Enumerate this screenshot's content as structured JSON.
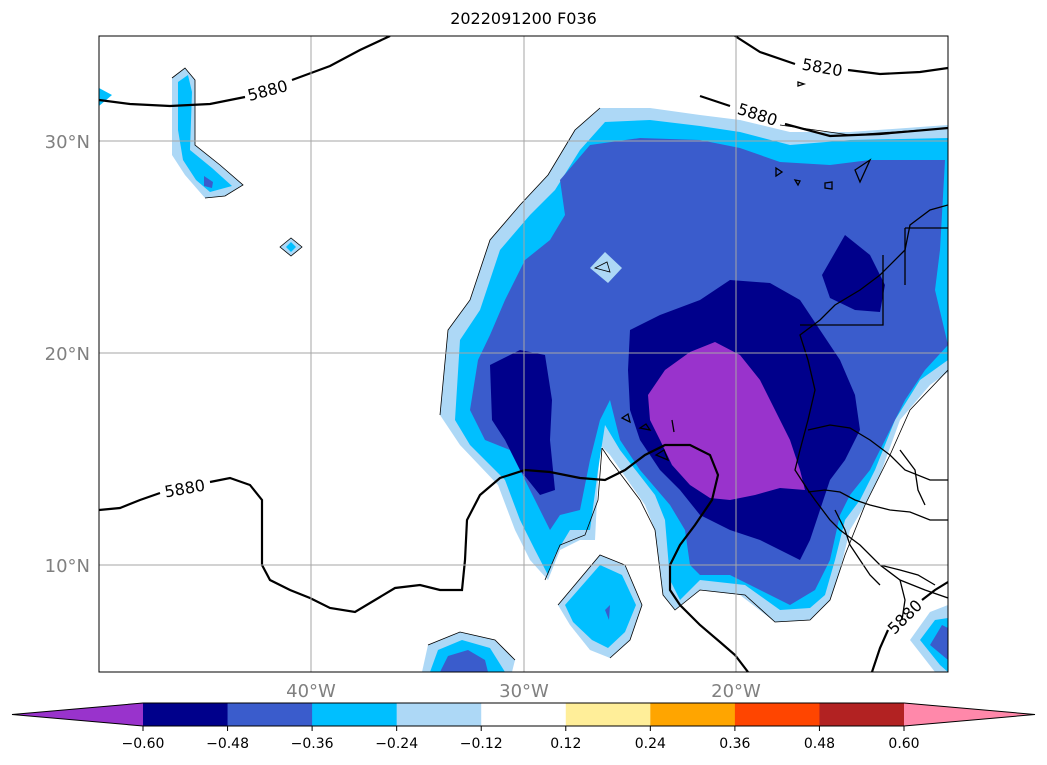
{
  "title": "2022091200 F036",
  "map": {
    "lat_ticks": [
      "30°N",
      "20°N",
      "10°N"
    ],
    "lon_ticks": [
      "40°W",
      "30°W",
      "20°W"
    ],
    "contour_labels": [
      "5880",
      "5880",
      "5820",
      "5880",
      "5880"
    ],
    "gridlines": true
  },
  "colorbar": {
    "ticks": [
      "−0.60",
      "−0.48",
      "−0.36",
      "−0.24",
      "−0.12",
      "0.12",
      "0.24",
      "0.36",
      "0.48",
      "0.60"
    ],
    "colors": [
      "#9933cc",
      "#00008b",
      "#3a5ccc",
      "#00bfff",
      "#add8f6",
      "#ffffff",
      "#ffee99",
      "#ffa500",
      "#ff4500",
      "#b22222",
      "#ff88aa"
    ],
    "extend": "both"
  }
}
